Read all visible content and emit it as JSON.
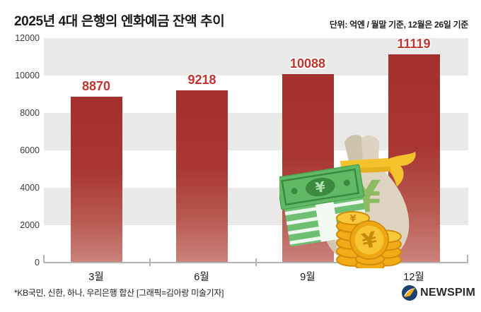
{
  "chart_data": {
    "type": "bar",
    "title": "2025년 4대 은행의 엔화예금 잔액 추이",
    "unit_note": "단위: 억엔 / 월말 기준, 12월은 26일 기준",
    "categories": [
      "3월",
      "6월",
      "9월",
      "12월"
    ],
    "values": [
      8870,
      9218,
      10088,
      11119
    ],
    "ylim": [
      0,
      12000
    ],
    "yticks": [
      12000,
      10000,
      8000,
      6000,
      4000,
      2000,
      0
    ],
    "grid": "alternating-horizontal-bands",
    "band_color": "#e9e9e8",
    "bar_color_top": "#a4302d",
    "bar_color_bottom": "#ca837b",
    "value_label_color": "#c2342f",
    "legend": "none"
  },
  "footnote": {
    "text": "*KB국민, 신한, 하나, 우리은행 합산 [그래픽=김아랑 미술기자]"
  },
  "logo": {
    "text": "NEWSPIM",
    "icon": "newspim-circle-icon",
    "icon_blue": "#1d3f6e",
    "icon_orange": "#f5a81c"
  },
  "illustration": {
    "description": "money bag with green yen symbol tied with yellow ribbon, stack of green yen banknotes, stacks of gold yen coins",
    "icons": [
      "money-bag-icon",
      "banknote-stack-icon",
      "coin-stack-icon"
    ]
  }
}
